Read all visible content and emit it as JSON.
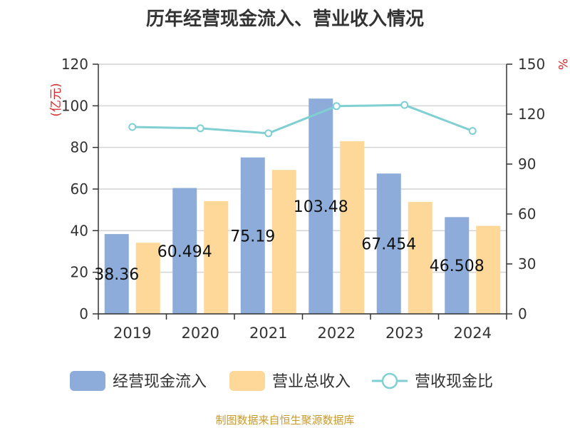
{
  "chart_data": {
    "type": "bar",
    "title": "历年经营现金流入、营业收入情况",
    "categories": [
      "2019",
      "2020",
      "2021",
      "2022",
      "2023",
      "2024"
    ],
    "series": [
      {
        "name": "经营现金流入",
        "kind": "bar",
        "axis": "left",
        "color": "#8dacd9",
        "values": [
          38.36,
          60.494,
          75.19,
          103.48,
          67.454,
          46.508
        ],
        "labels": [
          "38.36",
          "60.494",
          "75.19",
          "103.48",
          "67.454",
          "46.508"
        ]
      },
      {
        "name": "营业总收入",
        "kind": "bar",
        "axis": "left",
        "color": "#fed898",
        "values": [
          34.2,
          54.2,
          69.2,
          83.0,
          53.8,
          42.3
        ]
      },
      {
        "name": "营收现金比",
        "kind": "line",
        "axis": "right",
        "color": "#7fcfd3",
        "values": [
          112.3,
          111.5,
          108.5,
          124.8,
          125.5,
          109.9
        ]
      }
    ],
    "y_left": {
      "unit": "(亿元)",
      "min": 0,
      "max": 120,
      "ticks": [
        "0",
        "20",
        "40",
        "60",
        "80",
        "100",
        "120"
      ]
    },
    "y_right": {
      "unit": "%",
      "min": 0,
      "max": 150,
      "ticks": [
        "0",
        "30",
        "60",
        "90",
        "120",
        "150"
      ]
    },
    "grid": true,
    "legend": "bottom"
  },
  "source": "制图数据来自恒生聚源数据库"
}
